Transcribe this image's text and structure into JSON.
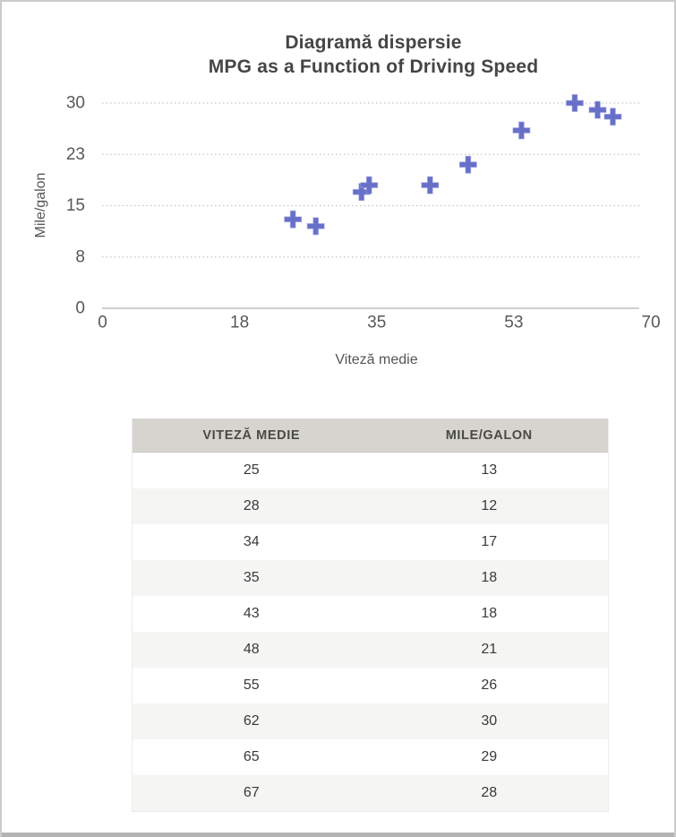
{
  "window": {
    "background": "#FFFFFF",
    "frame_border_color": "#CBCBCB",
    "bottom_bar_color": "#B4B4B4"
  },
  "chart_data": {
    "type": "scatter",
    "title_line1": "Diagramă dispersie",
    "title_line2": "MPG as a Function of Driving Speed",
    "xlabel": "Viteză medie",
    "ylabel": "Mile/galon",
    "x": [
      25,
      28,
      34,
      35,
      43,
      48,
      55,
      62,
      65,
      67
    ],
    "y": [
      13,
      12,
      17,
      18,
      18,
      21,
      26,
      30,
      29,
      28
    ],
    "xlim": [
      0,
      70
    ],
    "ylim": [
      0,
      30
    ],
    "x_tick_labels": [
      "0",
      "18",
      "35",
      "53",
      "70"
    ],
    "y_ticks": [
      {
        "value": 0,
        "label": "0"
      },
      {
        "value": 7.5,
        "label": "8"
      },
      {
        "value": 15,
        "label": "15"
      },
      {
        "value": 22.5,
        "label": "23"
      },
      {
        "value": 30,
        "label": "30"
      }
    ],
    "grid": "horizontal-dotted",
    "legend": "none",
    "marker": {
      "shape": "plus",
      "color": "#6770C8",
      "halo_color": "#9BA0DC"
    },
    "gridline_color": "#C6C6C6",
    "axis_line_color": "#BFBFBF",
    "tick_label_color": "#58585A",
    "title_color": "#454547"
  },
  "table": {
    "columns": [
      "VITEZĂ MEDIE",
      "MILE/GALON"
    ],
    "rows": [
      [
        "25",
        "13"
      ],
      [
        "28",
        "12"
      ],
      [
        "34",
        "17"
      ],
      [
        "35",
        "18"
      ],
      [
        "43",
        "18"
      ],
      [
        "48",
        "21"
      ],
      [
        "55",
        "26"
      ],
      [
        "62",
        "30"
      ],
      [
        "65",
        "29"
      ],
      [
        "67",
        "28"
      ]
    ],
    "header_bg": "#D6D4CF",
    "alt_row_bg": "#F5F5F3"
  }
}
